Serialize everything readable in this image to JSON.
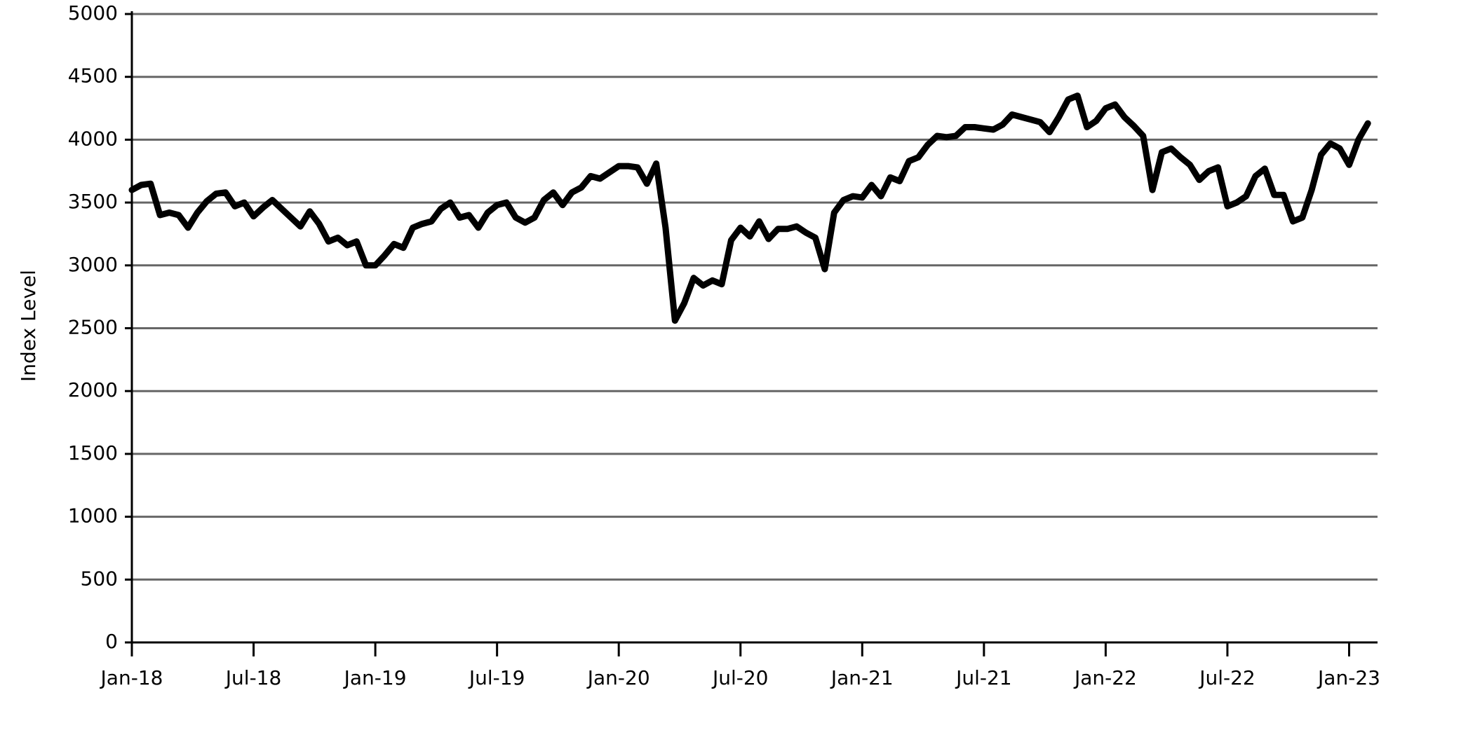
{
  "chart_data": {
    "type": "line",
    "y_label": "Index Level",
    "categories": [
      "Jan-18",
      null,
      null,
      null,
      null,
      null,
      null,
      null,
      null,
      null,
      null,
      null,
      null,
      "Jul-18",
      null,
      null,
      null,
      null,
      null,
      null,
      null,
      null,
      null,
      null,
      null,
      null,
      "Jan-19",
      null,
      null,
      null,
      null,
      null,
      null,
      null,
      null,
      null,
      null,
      null,
      null,
      "Jul-19",
      null,
      null,
      null,
      null,
      null,
      null,
      null,
      null,
      null,
      null,
      null,
      null,
      "Jan-20",
      null,
      null,
      null,
      null,
      null,
      null,
      null,
      null,
      null,
      null,
      null,
      null,
      "Jul-20",
      null,
      null,
      null,
      null,
      null,
      null,
      null,
      null,
      null,
      null,
      null,
      null,
      "Jan-21",
      null,
      null,
      null,
      null,
      null,
      null,
      null,
      null,
      null,
      null,
      null,
      null,
      "Jul-21",
      null,
      null,
      null,
      null,
      null,
      null,
      null,
      null,
      null,
      null,
      null,
      null,
      "Jan-22",
      null,
      null,
      null,
      null,
      null,
      null,
      null,
      null,
      null,
      null,
      null,
      null,
      "Jul-22",
      null,
      null,
      null,
      null,
      null,
      null,
      null,
      null,
      null,
      null,
      null,
      null,
      "Jan-23",
      null,
      null
    ],
    "values": [
      3600,
      3640,
      3650,
      3400,
      3420,
      3400,
      3300,
      3420,
      3510,
      3570,
      3580,
      3470,
      3500,
      3390,
      3460,
      3520,
      3450,
      3380,
      3310,
      3430,
      3330,
      3190,
      3220,
      3160,
      3190,
      3000,
      3000,
      3080,
      3170,
      3140,
      3300,
      3330,
      3350,
      3450,
      3500,
      3380,
      3400,
      3300,
      3420,
      3480,
      3500,
      3380,
      3340,
      3380,
      3520,
      3580,
      3480,
      3580,
      3620,
      3710,
      3690,
      3740,
      3790,
      3790,
      3780,
      3650,
      3810,
      3300,
      2560,
      2700,
      2900,
      2840,
      2880,
      2850,
      3200,
      3300,
      3230,
      3350,
      3210,
      3290,
      3290,
      3310,
      3260,
      3220,
      2970,
      3420,
      3520,
      3550,
      3540,
      3640,
      3550,
      3700,
      3670,
      3830,
      3860,
      3960,
      4030,
      4020,
      4030,
      4100,
      4100,
      4090,
      4080,
      4120,
      4200,
      4180,
      4160,
      4140,
      4060,
      4180,
      4320,
      4350,
      4100,
      4150,
      4250,
      4280,
      4180,
      4110,
      4030,
      3600,
      3900,
      3930,
      3860,
      3800,
      3680,
      3750,
      3780,
      3470,
      3500,
      3550,
      3710,
      3770,
      3560,
      3560,
      3350,
      3380,
      3600,
      3880,
      3970,
      3930,
      3800,
      4000,
      4130
    ],
    "color": "#000000",
    "grid_color": "#666666",
    "ylim": [
      0,
      5000
    ],
    "yticks": [
      0,
      500,
      1000,
      1500,
      2000,
      2500,
      3000,
      3500,
      4000,
      4500,
      5000
    ],
    "grid": true
  }
}
